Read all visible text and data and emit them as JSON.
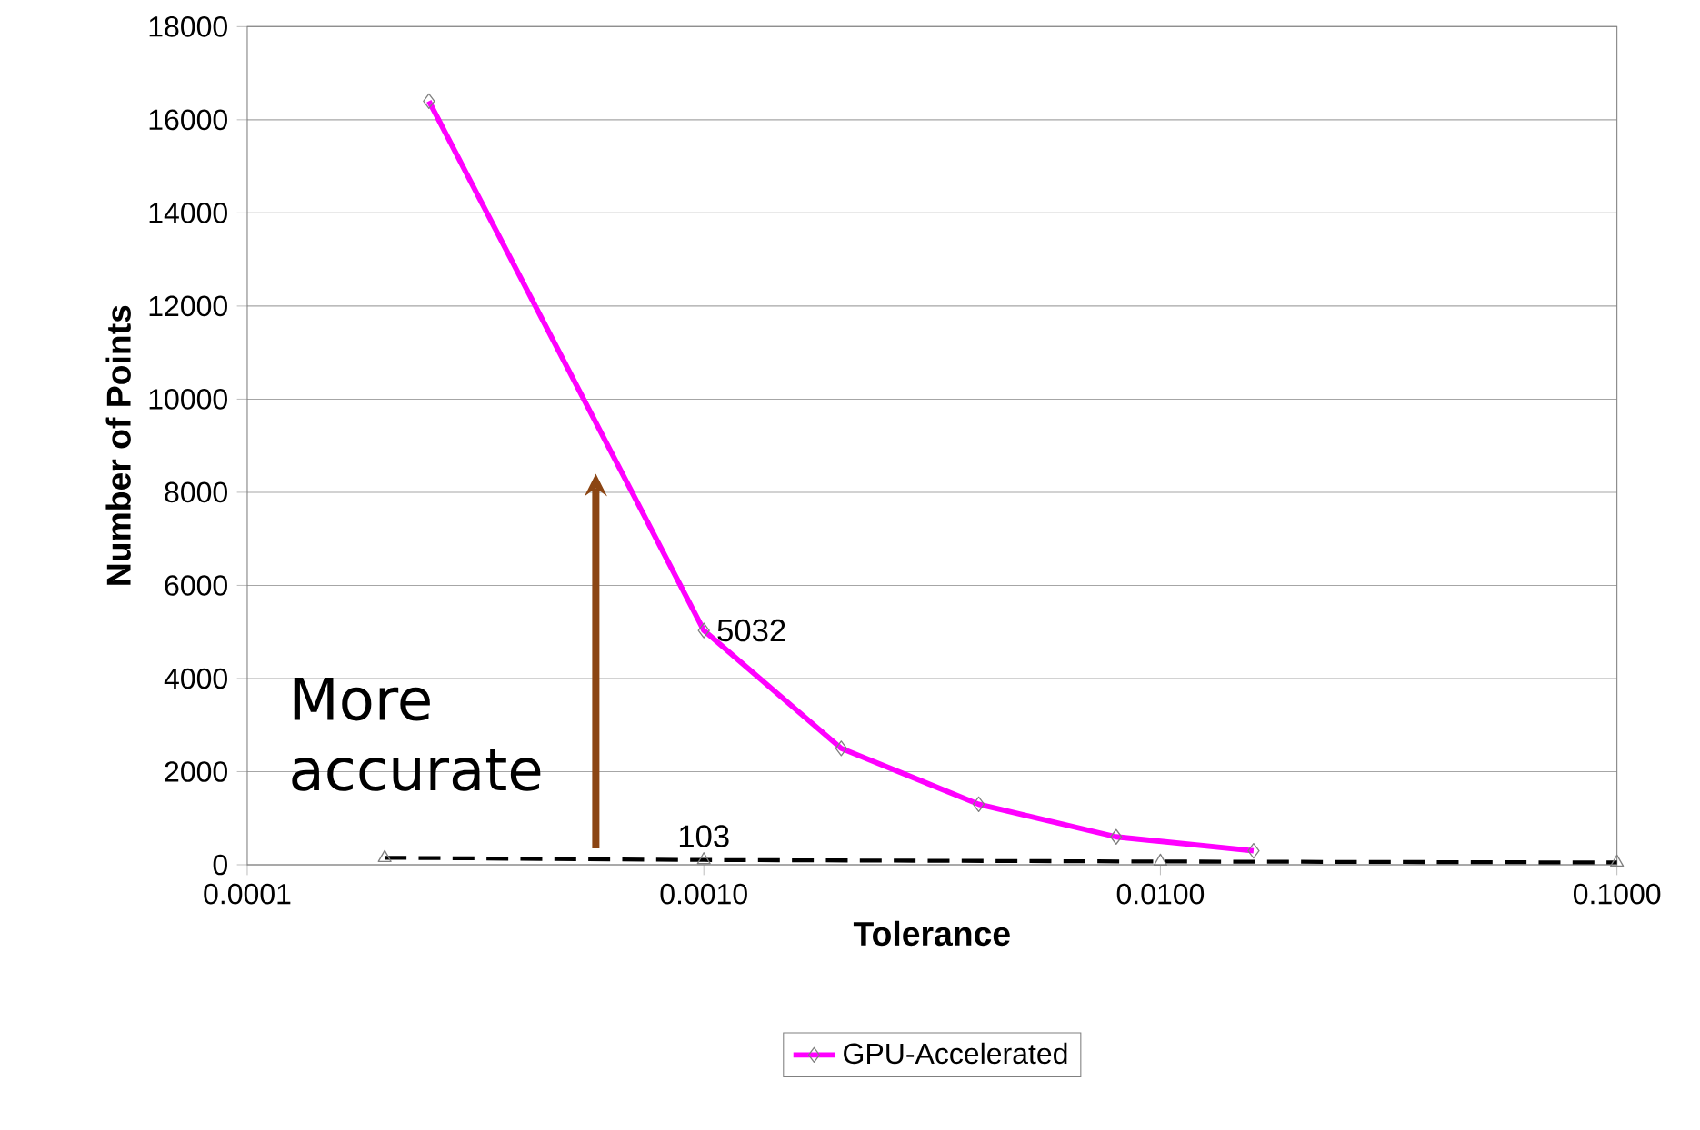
{
  "chart_data": {
    "type": "line",
    "xlabel": "Tolerance",
    "ylabel": "Number of Points",
    "log": "x",
    "xlim": [
      0.0001,
      0.1
    ],
    "xticks": [
      {
        "value": 0.0001,
        "label": "0.0001"
      },
      {
        "value": 0.001,
        "label": "0.0010"
      },
      {
        "value": 0.01,
        "label": "0.0100"
      },
      {
        "value": 0.1,
        "label": "0.1000"
      }
    ],
    "ylim": [
      0,
      18000
    ],
    "yticks": [
      0,
      2000,
      4000,
      6000,
      8000,
      10000,
      12000,
      14000,
      16000,
      18000
    ],
    "grid": "y",
    "legend": "bottom",
    "series": [
      {
        "name": "GPU-Accelerated",
        "color": "#ff00ff",
        "marker": "diamond",
        "line_style": "solid",
        "x": [
          0.00025,
          0.001,
          0.002,
          0.004,
          0.008,
          0.016
        ],
        "values": [
          16400,
          5032,
          2500,
          1300,
          600,
          300
        ],
        "value_labels": [
          null,
          "5032",
          null,
          null,
          null,
          null
        ]
      },
      {
        "color": "#000000",
        "marker": "triangle",
        "line_style": "dashed",
        "x": [
          0.0002,
          0.001,
          0.01,
          0.1
        ],
        "values": [
          150,
          103,
          70,
          50
        ],
        "value_labels": [
          null,
          "103",
          null,
          null
        ]
      }
    ],
    "annotations": [
      "More accurate"
    ]
  }
}
